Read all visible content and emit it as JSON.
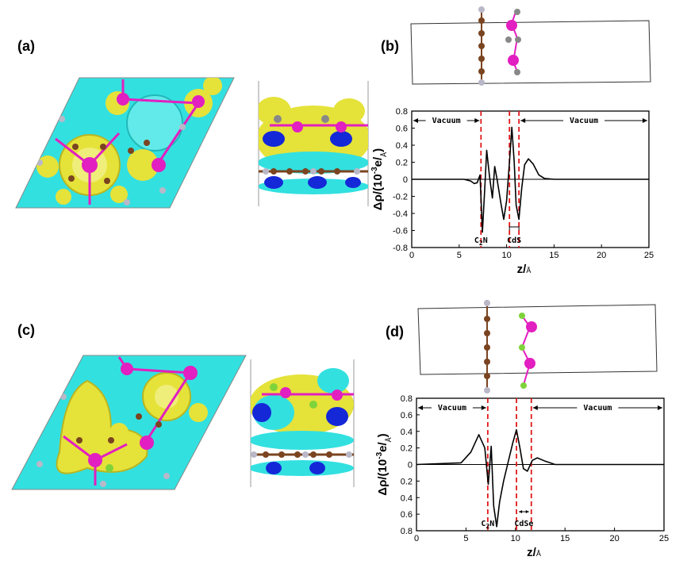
{
  "panels": {
    "a": "(a)",
    "b": "(b)",
    "c": "(c)",
    "d": "(d)"
  },
  "colors": {
    "cyan": "#33e0e0",
    "yellow": "#e5e23a",
    "magenta": "#e21fc0",
    "blue": "#1428d8",
    "brown": "#7a4420",
    "gray": "#b8b8c8",
    "green": "#7ed33a",
    "red_dash": "#e01818"
  },
  "chart_data": [
    {
      "type": "line",
      "panel": "(b)",
      "xlabel": "z/Å",
      "ylabel": "Δρ/(10^-3 e/Å)",
      "xlim": [
        0,
        25
      ],
      "ylim": [
        -0.8,
        0.8
      ],
      "xticks": [
        "0",
        "5",
        "10",
        "15",
        "20",
        "25"
      ],
      "yticks": [
        "0.8",
        "0.6",
        "0.4",
        "0.2",
        "0",
        "-0.2",
        "-0.4",
        "-0.6",
        "-0.8"
      ],
      "series": [
        {
          "x": [
            0,
            5.5,
            6.2,
            6.6,
            6.9,
            7.2,
            7.45,
            7.7,
            7.9,
            8.2,
            8.5,
            8.75,
            9.0,
            9.4,
            9.7,
            10.0,
            10.3,
            10.55,
            10.8,
            11.0,
            11.3,
            11.6,
            11.9,
            12.3,
            12.8,
            13.4,
            14.0,
            15,
            25
          ],
          "y": [
            0,
            0,
            -0.02,
            -0.05,
            -0.04,
            0.05,
            -0.62,
            -0.1,
            0.34,
            0.03,
            -0.22,
            0.15,
            0.0,
            -0.28,
            -0.47,
            -0.25,
            0.2,
            0.61,
            0.2,
            -0.3,
            -0.47,
            -0.1,
            0.17,
            0.24,
            0.18,
            0.05,
            0.01,
            0,
            0
          ]
        }
      ],
      "vlines": [
        7.3,
        10.3,
        11.3
      ],
      "vacuum_left": {
        "label": "Vacuum",
        "from": 0,
        "to": 7.3
      },
      "vacuum_right": {
        "label": "Vacuum",
        "from": 11.3,
        "to": 25
      },
      "annot_c2n": "C2N",
      "annot_cds": "CdS"
    },
    {
      "type": "line",
      "panel": "(d)",
      "xlabel": "z/Å",
      "ylabel": "Δρ/(10^-3 e/Å)",
      "xlim": [
        0,
        25
      ],
      "ylim": [
        -0.8,
        0.8
      ],
      "xticks": [
        "0",
        "5",
        "10",
        "15",
        "20",
        "25"
      ],
      "yticks": [
        "0.8",
        "0.6",
        "0.4",
        "0.2",
        "0",
        "0.2",
        "0.4",
        "0.6",
        "0.8"
      ],
      "series": [
        {
          "x": [
            0,
            4.5,
            5.5,
            6.3,
            6.9,
            7.25,
            7.55,
            7.8,
            8.1,
            8.4,
            8.8,
            9.2,
            9.7,
            10.1,
            10.45,
            10.8,
            11.2,
            11.7,
            12.2,
            13,
            14,
            15,
            25
          ],
          "y": [
            0,
            0.02,
            0.15,
            0.36,
            0.2,
            -0.24,
            0.22,
            -0.5,
            -0.75,
            -0.45,
            -0.2,
            0.0,
            0.25,
            0.42,
            0.2,
            -0.05,
            -0.08,
            0.05,
            0.08,
            0.04,
            0.0,
            0,
            0
          ]
        }
      ],
      "vlines": [
        7.2,
        10.1,
        11.6
      ],
      "vacuum_left": {
        "label": "Vacuum",
        "from": 0,
        "to": 7.2
      },
      "vacuum_right": {
        "label": "Vacuum",
        "from": 11.6,
        "to": 25
      },
      "annot_c2n": "C2N",
      "annot_cdse": "CdSe"
    }
  ]
}
